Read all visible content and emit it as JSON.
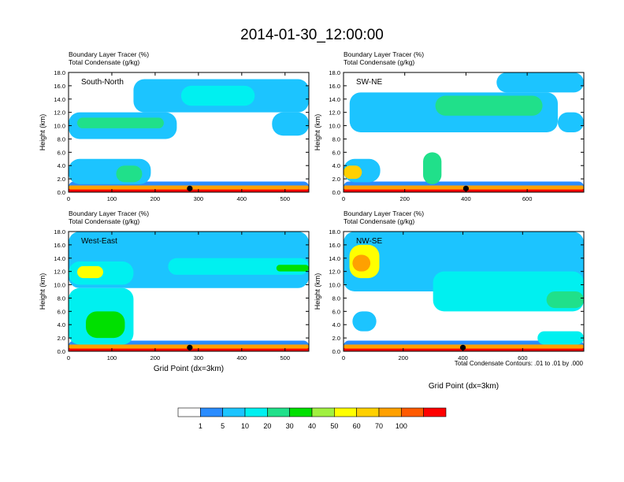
{
  "title": "2014-01-30_12:00:00",
  "colors": {
    "levels": [
      "#ffffff",
      "#2a8cff",
      "#1cc4ff",
      "#00f0f0",
      "#20e08a",
      "#00e000",
      "#a0f040",
      "#ffff00",
      "#ffd000",
      "#ffa000",
      "#ff5a00",
      "#ff0000"
    ]
  },
  "colorbar": {
    "labels": [
      "1",
      "5",
      "10",
      "20",
      "30",
      "40",
      "50",
      "60",
      "70",
      "100"
    ]
  },
  "contour_note": "Total Condensate Contours: .01 to .01 by .000",
  "chart_data": [
    {
      "type": "heatmap",
      "panel": "South-North",
      "title_line1": "Boundary Layer Tracer    (%)",
      "title_line2": "Total Condensate    (g/kg)",
      "ylabel": "Height (km)",
      "xlabel": "",
      "xlim": [
        0,
        555
      ],
      "ylim": [
        0,
        18
      ],
      "xticks": [
        "0",
        "100",
        "200",
        "300",
        "400",
        "500"
      ],
      "xtick_values": [
        0,
        100,
        200,
        300,
        400,
        500
      ],
      "yticks": [
        "0.0",
        "2.0",
        "4.0",
        "6.0",
        "8.0",
        "10.0",
        "12.0",
        "14.0",
        "16.0",
        "18.0"
      ],
      "marker_x": 280,
      "features": [
        {
          "level": 1,
          "x": [
            0,
            555
          ],
          "y": [
            0,
            1.6
          ]
        },
        {
          "level": 11,
          "x": [
            0,
            555
          ],
          "y": [
            0,
            0.6
          ]
        },
        {
          "level": 9,
          "x": [
            0,
            555
          ],
          "y": [
            0.4,
            1.0
          ]
        },
        {
          "level": 2,
          "x": [
            0,
            250
          ],
          "y": [
            8,
            12
          ]
        },
        {
          "level": 4,
          "x": [
            20,
            220
          ],
          "y": [
            9.6,
            11.2
          ]
        },
        {
          "level": 2,
          "x": [
            150,
            555
          ],
          "y": [
            12,
            17
          ]
        },
        {
          "level": 3,
          "x": [
            260,
            430
          ],
          "y": [
            13,
            16
          ]
        },
        {
          "level": 2,
          "x": [
            0,
            190
          ],
          "y": [
            1.2,
            5
          ]
        },
        {
          "level": 4,
          "x": [
            110,
            170
          ],
          "y": [
            1.5,
            4
          ]
        },
        {
          "level": 2,
          "x": [
            470,
            555
          ],
          "y": [
            8.5,
            12
          ]
        }
      ]
    },
    {
      "type": "heatmap",
      "panel": "SW-NE",
      "title_line1": "Boundary Layer Tracer    (%)",
      "title_line2": "Total Condensate    (g/kg)",
      "ylabel": "Height (km)",
      "xlabel": "",
      "xlim": [
        0,
        785
      ],
      "ylim": [
        0,
        18
      ],
      "xticks": [
        "0",
        "200",
        "400",
        "600"
      ],
      "xtick_values": [
        0,
        200,
        400,
        600
      ],
      "yticks": [
        "0.0",
        "2.0",
        "4.0",
        "6.0",
        "8.0",
        "10.0",
        "12.0",
        "14.0",
        "16.0",
        "18.0"
      ],
      "marker_x": 400,
      "features": [
        {
          "level": 1,
          "x": [
            0,
            785
          ],
          "y": [
            0,
            1.6
          ]
        },
        {
          "level": 11,
          "x": [
            0,
            785
          ],
          "y": [
            0,
            0.6
          ]
        },
        {
          "level": 9,
          "x": [
            0,
            785
          ],
          "y": [
            0.4,
            1.0
          ]
        },
        {
          "level": 2,
          "x": [
            20,
            700
          ],
          "y": [
            9,
            15
          ]
        },
        {
          "level": 4,
          "x": [
            300,
            650
          ],
          "y": [
            11.5,
            14.5
          ]
        },
        {
          "level": 2,
          "x": [
            0,
            120
          ],
          "y": [
            1.5,
            5
          ]
        },
        {
          "level": 8,
          "x": [
            0,
            60
          ],
          "y": [
            2,
            4
          ]
        },
        {
          "level": 4,
          "x": [
            260,
            320
          ],
          "y": [
            1.2,
            6
          ]
        },
        {
          "level": 2,
          "x": [
            500,
            785
          ],
          "y": [
            15,
            18
          ]
        },
        {
          "level": 2,
          "x": [
            700,
            785
          ],
          "y": [
            9,
            12
          ]
        }
      ]
    },
    {
      "type": "heatmap",
      "panel": "West-East",
      "title_line1": "Boundary Layer Tracer    (%)",
      "title_line2": "Total Condensate    (g/kg)",
      "ylabel": "Height (km)",
      "xlabel": "Grid Point (dx=3km)",
      "xlim": [
        0,
        555
      ],
      "ylim": [
        0,
        18
      ],
      "xticks": [
        "0",
        "100",
        "200",
        "300",
        "400",
        "500"
      ],
      "xtick_values": [
        0,
        100,
        200,
        300,
        400,
        500
      ],
      "yticks": [
        "0.0",
        "2.0",
        "4.0",
        "6.0",
        "8.0",
        "10.0",
        "12.0",
        "14.0",
        "16.0",
        "18.0"
      ],
      "marker_x": 280,
      "features": [
        {
          "level": 1,
          "x": [
            0,
            555
          ],
          "y": [
            0,
            1.6
          ]
        },
        {
          "level": 11,
          "x": [
            0,
            555
          ],
          "y": [
            0,
            0.6
          ]
        },
        {
          "level": 9,
          "x": [
            0,
            555
          ],
          "y": [
            0.4,
            1.0
          ]
        },
        {
          "level": 2,
          "x": [
            0,
            555
          ],
          "y": [
            9.5,
            18
          ]
        },
        {
          "level": 3,
          "x": [
            0,
            150
          ],
          "y": [
            10,
            13.5
          ]
        },
        {
          "level": 7,
          "x": [
            20,
            80
          ],
          "y": [
            11,
            12.8
          ]
        },
        {
          "level": 3,
          "x": [
            230,
            555
          ],
          "y": [
            11.5,
            14
          ]
        },
        {
          "level": 5,
          "x": [
            480,
            555
          ],
          "y": [
            12,
            13
          ]
        },
        {
          "level": 3,
          "x": [
            0,
            150
          ],
          "y": [
            1,
            9.5
          ]
        },
        {
          "level": 5,
          "x": [
            40,
            130
          ],
          "y": [
            2,
            6
          ]
        }
      ]
    },
    {
      "type": "heatmap",
      "panel": "NW-SE",
      "title_line1": "Boundary Layer Tracer    (%)",
      "title_line2": "Total Condensate    (g/kg)",
      "ylabel": "Height (km)",
      "xlabel": "Grid Point (dx=3km)",
      "xlim": [
        0,
        805
      ],
      "ylim": [
        0,
        18
      ],
      "xticks": [
        "0",
        "200",
        "400",
        "600"
      ],
      "xtick_values": [
        0,
        200,
        400,
        600
      ],
      "yticks": [
        "0.0",
        "2.0",
        "4.0",
        "6.0",
        "8.0",
        "10.0",
        "12.0",
        "14.0",
        "16.0",
        "18.0"
      ],
      "marker_x": 400,
      "features": [
        {
          "level": 1,
          "x": [
            0,
            805
          ],
          "y": [
            0,
            1.6
          ]
        },
        {
          "level": 11,
          "x": [
            0,
            805
          ],
          "y": [
            0,
            0.6
          ]
        },
        {
          "level": 9,
          "x": [
            0,
            805
          ],
          "y": [
            0.4,
            1.0
          ]
        },
        {
          "level": 2,
          "x": [
            0,
            805
          ],
          "y": [
            9,
            18
          ]
        },
        {
          "level": 7,
          "x": [
            20,
            120
          ],
          "y": [
            11,
            16
          ]
        },
        {
          "level": 9,
          "x": [
            30,
            90
          ],
          "y": [
            12,
            14.5
          ]
        },
        {
          "level": 3,
          "x": [
            300,
            805
          ],
          "y": [
            6,
            12
          ]
        },
        {
          "level": 4,
          "x": [
            680,
            805
          ],
          "y": [
            6.5,
            9
          ]
        },
        {
          "level": 2,
          "x": [
            30,
            110
          ],
          "y": [
            3,
            6
          ]
        },
        {
          "level": 3,
          "x": [
            650,
            805
          ],
          "y": [
            1,
            3
          ]
        }
      ]
    }
  ]
}
